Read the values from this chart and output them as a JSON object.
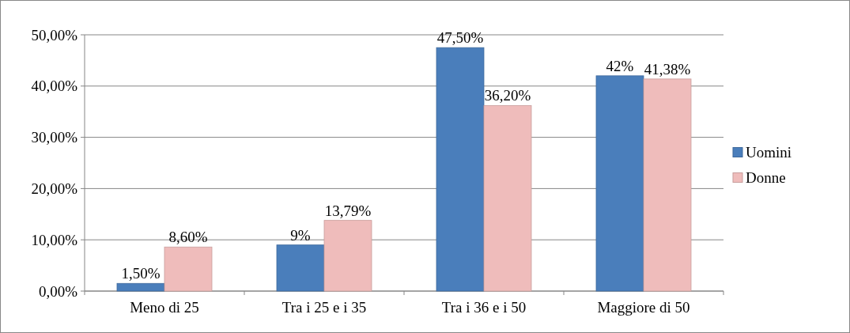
{
  "chart_data": {
    "type": "bar",
    "categories": [
      "Meno di 25",
      "Tra i 25 e i 35",
      "Tra i 36 e i 50",
      "Maggiore di 50"
    ],
    "series": [
      {
        "name": "Uomini",
        "color": "#4a7ebb",
        "values": [
          1.5,
          9,
          47.5,
          42
        ],
        "value_labels": [
          "1,50%",
          "9%",
          "47,50%",
          "42%"
        ]
      },
      {
        "name": "Donne",
        "color": "#efbcbb",
        "values": [
          8.6,
          13.79,
          36.2,
          41.38
        ],
        "value_labels": [
          "8,60%",
          "13,79%",
          "36,20%",
          "41,38%"
        ]
      }
    ],
    "ylim": [
      0,
      50
    ],
    "yticks": [
      {
        "value": 0,
        "label": "0,00%"
      },
      {
        "value": 10,
        "label": "10,00%"
      },
      {
        "value": 20,
        "label": "20,00%"
      },
      {
        "value": 30,
        "label": "30,00%"
      },
      {
        "value": 40,
        "label": "40,00%"
      },
      {
        "value": 50,
        "label": "50,00%"
      }
    ],
    "grid": "y",
    "legend": "right"
  }
}
